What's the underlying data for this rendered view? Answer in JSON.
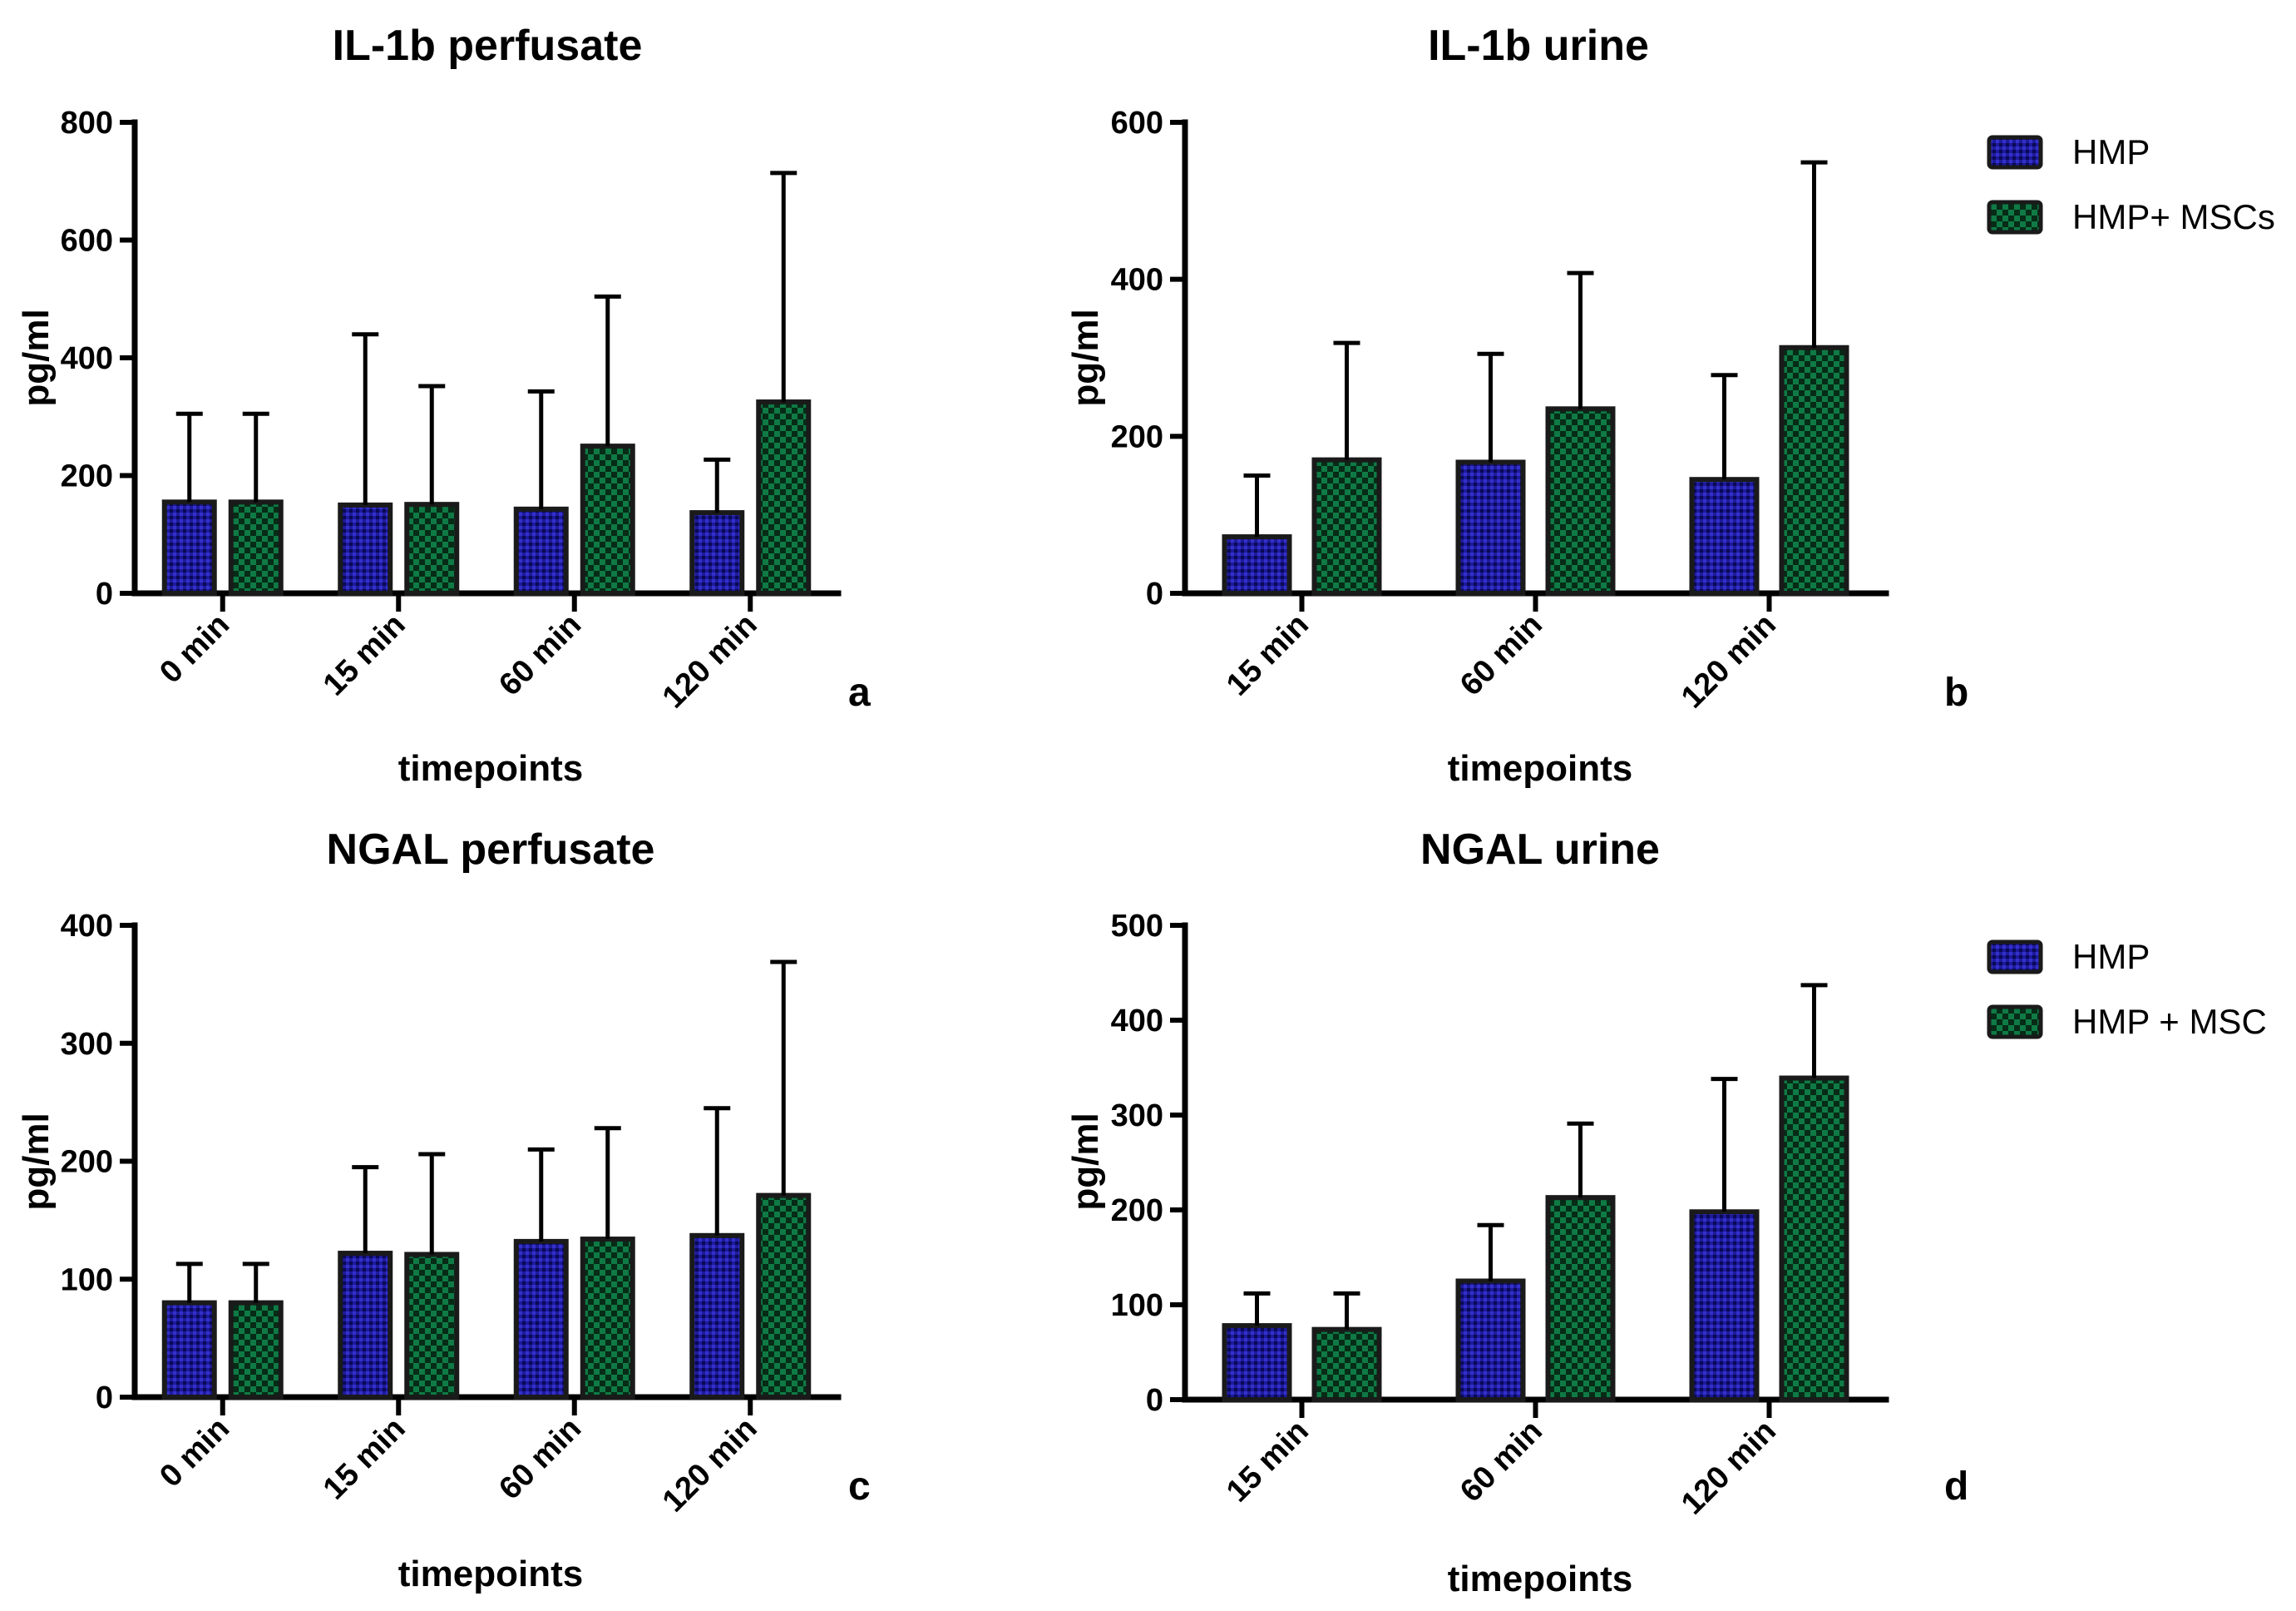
{
  "colors": {
    "hmp": "#1d1a9c",
    "hmp_dark": "#0a0a55",
    "msc": "#0f7a45",
    "msc_dark": "#062b16"
  },
  "chart_data": [
    {
      "id": "a",
      "type": "bar",
      "title": "IL-1b perfusate",
      "xlabel": "timepoints",
      "ylabel": "pg/ml",
      "ylim": [
        0,
        800
      ],
      "yticks": [
        0,
        200,
        400,
        600,
        800
      ],
      "categories": [
        "0 min",
        "15 min",
        "60 min",
        "120 min"
      ],
      "series": [
        {
          "name": "HMP",
          "values": [
            155,
            150,
            143,
            137
          ],
          "errors": [
            150,
            290,
            200,
            90
          ]
        },
        {
          "name": "HMP+ MSCs",
          "values": [
            155,
            151,
            250,
            325
          ],
          "errors": [
            150,
            201,
            254,
            389
          ]
        }
      ],
      "legend": null,
      "panel_label": "a"
    },
    {
      "id": "b",
      "type": "bar",
      "title": "IL-1b urine",
      "xlabel": "timepoints",
      "ylabel": "pg/ml",
      "ylim": [
        0,
        600
      ],
      "yticks": [
        0,
        200,
        400,
        600
      ],
      "categories": [
        "15 min",
        "60 min",
        "120 min"
      ],
      "series": [
        {
          "name": "HMP",
          "values": [
            72,
            167,
            145
          ],
          "errors": [
            78,
            138,
            133
          ]
        },
        {
          "name": "HMP+ MSCs",
          "values": [
            170,
            235,
            313
          ],
          "errors": [
            149,
            173,
            236
          ]
        }
      ],
      "legend": [
        "HMP",
        "HMP+ MSCs"
      ],
      "panel_label": "b"
    },
    {
      "id": "c",
      "type": "bar",
      "title": "NGAL perfusate",
      "xlabel": "timepoints",
      "ylabel": "pg/ml",
      "ylim": [
        0,
        400
      ],
      "yticks": [
        0,
        100,
        200,
        300,
        400
      ],
      "categories": [
        "0 min",
        "15 min",
        "60 min",
        "120 min"
      ],
      "series": [
        {
          "name": "HMP",
          "values": [
            80,
            122,
            132,
            137
          ],
          "errors": [
            33,
            73,
            78,
            108
          ]
        },
        {
          "name": "HMP + MSC",
          "values": [
            80,
            121,
            134,
            171
          ],
          "errors": [
            33,
            85,
            94,
            198
          ]
        }
      ],
      "legend": null,
      "panel_label": "c"
    },
    {
      "id": "d",
      "type": "bar",
      "title": "NGAL urine",
      "xlabel": "timepoints",
      "ylabel": "pg/ml",
      "ylim": [
        0,
        500
      ],
      "yticks": [
        0,
        100,
        200,
        300,
        400,
        500
      ],
      "categories": [
        "15 min",
        "60 min",
        "120 min"
      ],
      "series": [
        {
          "name": "HMP",
          "values": [
            78,
            125,
            198
          ],
          "errors": [
            34,
            59,
            140
          ]
        },
        {
          "name": "HMP + MSC",
          "values": [
            74,
            213,
            339
          ],
          "errors": [
            38,
            78,
            98
          ]
        }
      ],
      "legend": [
        "HMP",
        "HMP + MSC"
      ],
      "panel_label": "d"
    }
  ]
}
